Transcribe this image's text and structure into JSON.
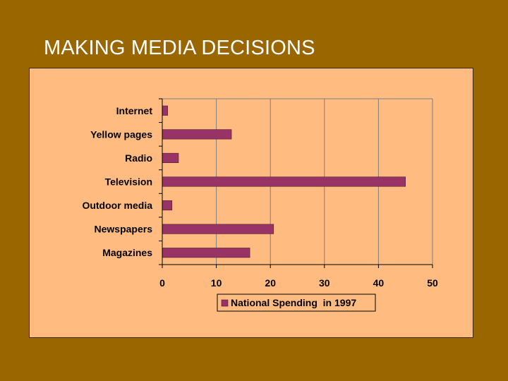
{
  "slide": {
    "title": "MAKING MEDIA DECISIONS"
  },
  "colors": {
    "background": "#996600",
    "panel": "#ffbb80",
    "bar": "#993366",
    "gridline": "#7f7f7f"
  },
  "chart_data": {
    "type": "bar",
    "orientation": "horizontal",
    "categories": [
      "Internet",
      "Yellow pages",
      "Radio",
      "Television",
      "Outdoor media",
      "Newspapers",
      "Magazines"
    ],
    "series": [
      {
        "name": "National Spending  in 1997",
        "values": [
          1.0,
          12.8,
          3.0,
          45.0,
          1.8,
          20.6,
          16.2
        ]
      }
    ],
    "xlim": [
      0,
      50
    ],
    "xticks": [
      0,
      10,
      20,
      30,
      40,
      50
    ],
    "grid": true,
    "legend": "bottom"
  }
}
